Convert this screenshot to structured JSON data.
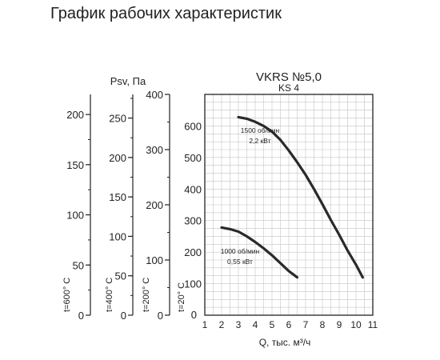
{
  "page_title": "График рабочих характеристик",
  "chart_data": {
    "type": "line",
    "title": "VKRS №5,0",
    "subtitle": "KS 4",
    "xlabel": "Q, тыс. м³/ч",
    "ylabel": "Psv, Па",
    "xlim": [
      1,
      11
    ],
    "x_ticks": [
      1,
      2,
      3,
      4,
      5,
      6,
      7,
      8,
      9,
      10,
      11
    ],
    "ylim": [
      0,
      700
    ],
    "y_ticks": [
      100,
      200,
      300,
      400,
      500,
      600
    ],
    "grid": true,
    "series": [
      {
        "name": "1500 об/мин 2,2 кВт",
        "label_lines": [
          "1500 об/мин",
          "2,2 кВт"
        ],
        "x": [
          3.0,
          3.5,
          4.0,
          4.5,
          5.0,
          5.5,
          6.0,
          6.5,
          7.0,
          7.5,
          8.0,
          8.5,
          9.0,
          9.5,
          10.0,
          10.4
        ],
        "y": [
          628,
          623,
          613,
          600,
          582,
          556,
          522,
          485,
          445,
          400,
          352,
          302,
          255,
          205,
          160,
          120
        ]
      },
      {
        "name": "1000 об/мин 0,55 кВт",
        "label_lines": [
          "1000 об/мин",
          "0,55 кВт"
        ],
        "x": [
          2.0,
          2.5,
          3.0,
          3.5,
          4.0,
          4.5,
          5.0,
          5.5,
          6.0,
          6.5
        ],
        "y": [
          278,
          273,
          265,
          250,
          232,
          212,
          190,
          165,
          140,
          120
        ]
      }
    ],
    "extra_axes": [
      {
        "temp": "t=600° C",
        "max": 220,
        "ticks": [
          0,
          50,
          100,
          150,
          200
        ]
      },
      {
        "temp": "t=400° C",
        "max": 280,
        "ticks": [
          0,
          50,
          100,
          150,
          200,
          250
        ]
      },
      {
        "temp": "t=200° C",
        "max": 400,
        "ticks": [
          0,
          100,
          200,
          300,
          400
        ]
      },
      {
        "temp": "t=20° C",
        "max": 700,
        "ticks": [
          0
        ]
      }
    ]
  }
}
